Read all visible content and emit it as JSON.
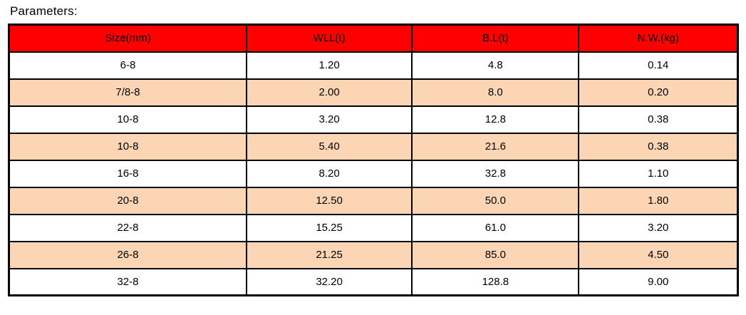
{
  "page": {
    "title": "Parameters:"
  },
  "table": {
    "columns": [
      "Size(mm)",
      "WLL(t)",
      "B.L(t)",
      "N.W.(kg)"
    ],
    "rows": [
      [
        "6-8",
        "1.20",
        "4.8",
        "0.14"
      ],
      [
        "7/8-8",
        "2.00",
        "8.0",
        "0.20"
      ],
      [
        "10-8",
        "3.20",
        "12.8",
        "0.38"
      ],
      [
        "10-8",
        "5.40",
        "21.6",
        "0.38"
      ],
      [
        "16-8",
        "8.20",
        "32.8",
        "1.10"
      ],
      [
        "20-8",
        "12.50",
        "50.0",
        "1.80"
      ],
      [
        "22-8",
        "15.25",
        "61.0",
        "3.20"
      ],
      [
        "26-8",
        "21.25",
        "85.0",
        "4.50"
      ],
      [
        "32-8",
        "32.20",
        "128.8",
        "9.00"
      ]
    ],
    "colors": {
      "header_bg": "#ff0000",
      "header_text": "#000000",
      "row_bg": "#ffffff",
      "row_alt_bg": "#fcd5b4",
      "border": "#000000",
      "text": "#000000"
    }
  }
}
